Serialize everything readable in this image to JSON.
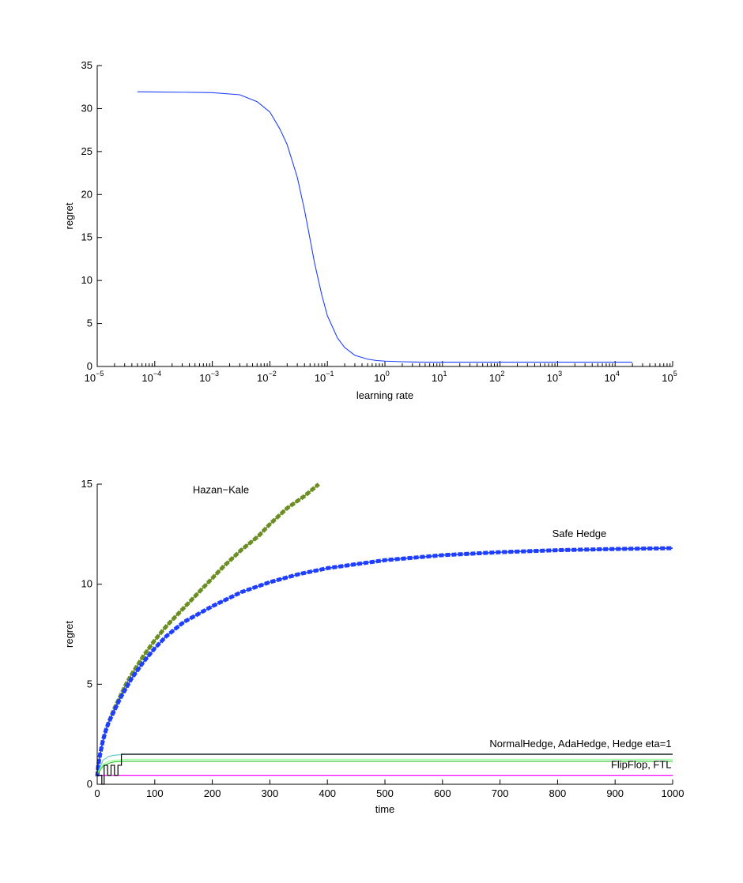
{
  "colors": {
    "background": "#ffffff",
    "axis": "#000000",
    "blue": "#1f3fff",
    "olive": "#6b8e23",
    "green": "#33cc33",
    "light_green": "#99ff99",
    "cyan": "#66cccc",
    "black": "#000000",
    "magenta": "#ff00ff"
  },
  "chart_data": [
    {
      "type": "line",
      "title": "",
      "xlabel": "learning rate",
      "ylabel": "regret",
      "xscale": "log",
      "xlim": [
        1e-05,
        100000
      ],
      "ylim": [
        0,
        35
      ],
      "x_tick_labels": [
        {
          "base": "10",
          "exp": "−5"
        },
        {
          "base": "10",
          "exp": "−4"
        },
        {
          "base": "10",
          "exp": "−3"
        },
        {
          "base": "10",
          "exp": "−2"
        },
        {
          "base": "10",
          "exp": "−1"
        },
        {
          "base": "10",
          "exp": "0"
        },
        {
          "base": "10",
          "exp": "1"
        },
        {
          "base": "10",
          "exp": "2"
        },
        {
          "base": "10",
          "exp": "3"
        },
        {
          "base": "10",
          "exp": "4"
        },
        {
          "base": "10",
          "exp": "5"
        }
      ],
      "y_ticks": [
        "0",
        "5",
        "10",
        "15",
        "20",
        "25",
        "30",
        "35"
      ],
      "grid": false,
      "series": [
        {
          "color": "#1f3fff",
          "x": [
            5e-05,
            0.0001,
            0.0003,
            0.001,
            0.003,
            0.006,
            0.01,
            0.015,
            0.02,
            0.03,
            0.04,
            0.05,
            0.06,
            0.08,
            0.1,
            0.15,
            0.2,
            0.3,
            0.5,
            0.7,
            1,
            2,
            3,
            5,
            7,
            10,
            100,
            1000,
            10000,
            20000
          ],
          "y": [
            31.95,
            31.93,
            31.9,
            31.85,
            31.6,
            30.8,
            29.6,
            27.6,
            25.8,
            22.0,
            18.2,
            14.8,
            12.0,
            8.3,
            5.9,
            3.3,
            2.2,
            1.3,
            0.85,
            0.7,
            0.62,
            0.55,
            0.52,
            0.5,
            0.5,
            0.5,
            0.5,
            0.5,
            0.5,
            0.5
          ]
        }
      ]
    },
    {
      "type": "line",
      "title": "",
      "xlabel": "time",
      "ylabel": "regret",
      "xlim": [
        0,
        1000
      ],
      "ylim": [
        0,
        15
      ],
      "x_ticks": [
        "0",
        "100",
        "200",
        "300",
        "400",
        "500",
        "600",
        "700",
        "800",
        "900",
        "1000"
      ],
      "y_ticks": [
        "0",
        "5",
        "10",
        "15"
      ],
      "grid": false,
      "annotations": [
        {
          "text": "Hazan−Kale",
          "x": 215,
          "y": 14.55
        },
        {
          "text": "Safe Hedge",
          "x": 885,
          "y": 12.35
        },
        {
          "text": "NormalHedge, AdaHedge, Hedge eta=1",
          "x": 998,
          "y": 1.85
        },
        {
          "text": "FlipFlop, FTL",
          "x": 998,
          "y": 0.8
        }
      ],
      "series": [
        {
          "color": "#6b8e23",
          "x": [
            0,
            2,
            5,
            10,
            15,
            20,
            30,
            40,
            50,
            60,
            80,
            100,
            120,
            150,
            180,
            200,
            220,
            250,
            280,
            300,
            330,
            360,
            385
          ],
          "y": [
            0.4,
            1.0,
            1.5,
            2.2,
            2.7,
            3.1,
            3.8,
            4.4,
            5.0,
            5.5,
            6.4,
            7.2,
            7.9,
            8.8,
            9.7,
            10.3,
            10.9,
            11.7,
            12.4,
            13.0,
            13.8,
            14.4,
            15.0
          ]
        },
        {
          "color": "#1f3fff",
          "x": [
            0,
            2,
            5,
            10,
            15,
            20,
            30,
            40,
            50,
            60,
            80,
            100,
            120,
            150,
            200,
            250,
            300,
            350,
            400,
            450,
            500,
            600,
            700,
            800,
            900,
            1000
          ],
          "y": [
            0.4,
            1.0,
            1.5,
            2.2,
            2.7,
            3.1,
            3.7,
            4.3,
            4.8,
            5.3,
            6.1,
            6.8,
            7.4,
            8.1,
            8.9,
            9.6,
            10.1,
            10.5,
            10.8,
            11.0,
            11.2,
            11.45,
            11.6,
            11.7,
            11.76,
            11.8
          ]
        },
        {
          "color": "#66cccc",
          "x": [
            0,
            10,
            20,
            30,
            40,
            50,
            100,
            1000
          ],
          "y": [
            0.5,
            1.2,
            1.4,
            1.45,
            1.48,
            1.5,
            1.5,
            1.5
          ]
        },
        {
          "color": "#99ff99",
          "x": [
            0,
            10,
            20,
            30,
            40,
            50,
            100,
            1000
          ],
          "y": [
            0.5,
            1.0,
            1.15,
            1.2,
            1.22,
            1.25,
            1.25,
            1.25
          ]
        },
        {
          "color": "#33cc33",
          "x": [
            0,
            10,
            20,
            30,
            50,
            100,
            1000
          ],
          "y": [
            0.5,
            0.9,
            1.05,
            1.12,
            1.15,
            1.15,
            1.15
          ]
        },
        {
          "color": "#ff00ff",
          "x": [
            0,
            20,
            1000
          ],
          "y": [
            0.45,
            0.45,
            0.45
          ]
        },
        {
          "color": "#000000",
          "x": [
            0,
            8,
            8,
            12,
            12,
            18,
            18,
            24,
            24,
            30,
            30,
            36,
            36,
            42,
            42,
            1000
          ],
          "y": [
            0.45,
            0.45,
            0,
            0,
            0.95,
            0.95,
            0.45,
            0.45,
            0.95,
            0.95,
            0.45,
            0.45,
            0.95,
            0.95,
            1.5,
            1.5
          ]
        }
      ]
    }
  ]
}
